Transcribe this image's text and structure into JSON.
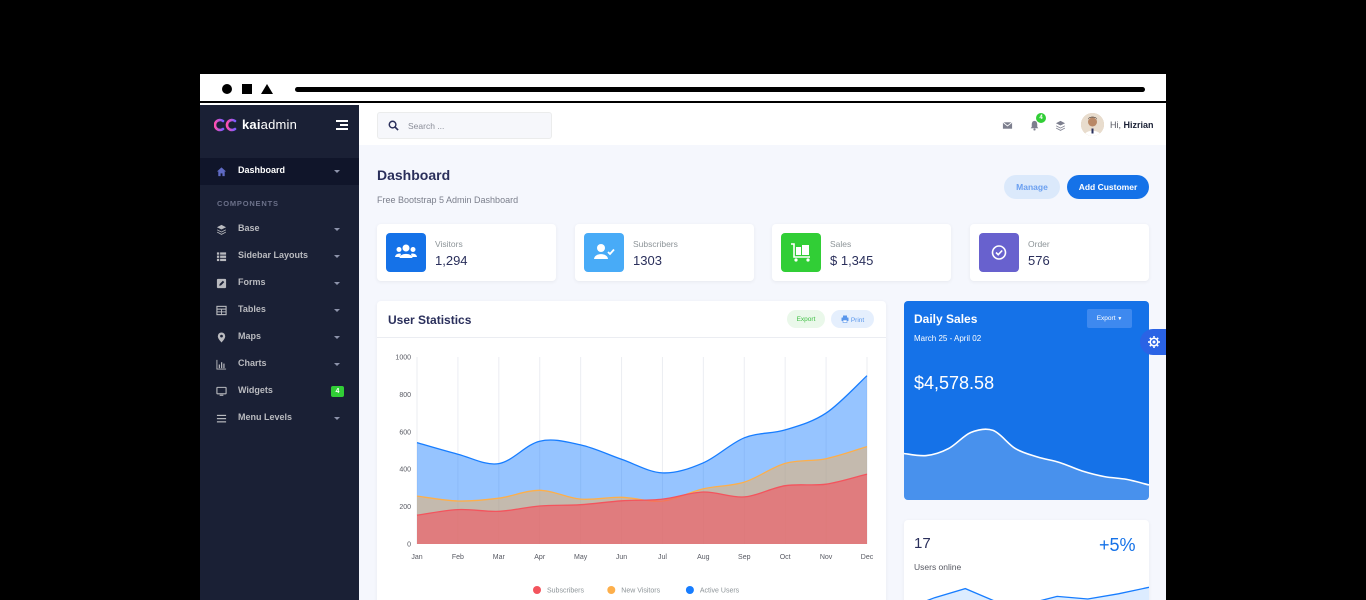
{
  "app": {
    "logo_text_bold": "kai",
    "logo_text_light": "admin"
  },
  "sidebar": {
    "section_label": "COMPONENTS",
    "items": [
      {
        "label": "Dashboard",
        "icon": "home-icon",
        "active": true
      },
      {
        "label": "Base",
        "icon": "layers-icon"
      },
      {
        "label": "Sidebar Layouts",
        "icon": "th-list-icon"
      },
      {
        "label": "Forms",
        "icon": "pen-square-icon"
      },
      {
        "label": "Tables",
        "icon": "table-icon"
      },
      {
        "label": "Maps",
        "icon": "map-marker-icon"
      },
      {
        "label": "Charts",
        "icon": "bar-chart-icon"
      },
      {
        "label": "Widgets",
        "icon": "desktop-icon",
        "badge": "4"
      },
      {
        "label": "Menu Levels",
        "icon": "bars-icon"
      }
    ]
  },
  "topbar": {
    "search_placeholder": "Search ...",
    "notification_count": "4",
    "greeting": "Hi,",
    "user_name": "Hizrian"
  },
  "page": {
    "title": "Dashboard",
    "subtitle": "Free Bootstrap 5 Admin Dashboard",
    "manage_label": "Manage",
    "add_customer_label": "Add Customer"
  },
  "stats": [
    {
      "label": "Visitors",
      "value": "1,294",
      "icon": "users-icon",
      "color": "#1572e8"
    },
    {
      "label": "Subscribers",
      "value": "1303",
      "icon": "user-check-icon",
      "color": "#48abf7"
    },
    {
      "label": "Sales",
      "value": "$ 1,345",
      "icon": "luggage-cart-icon",
      "color": "#31ce36"
    },
    {
      "label": "Order",
      "value": "576",
      "icon": "check-circle-icon",
      "color": "#6861ce"
    }
  ],
  "user_statistics": {
    "title": "User Statistics",
    "export_label": "Export",
    "print_label": "Print"
  },
  "chart_data": {
    "type": "area",
    "categories": [
      "Jan",
      "Feb",
      "Mar",
      "Apr",
      "May",
      "Jun",
      "Jul",
      "Aug",
      "Sep",
      "Oct",
      "Nov",
      "Dec"
    ],
    "ylim": [
      0,
      1000
    ],
    "yticks": [
      0,
      200,
      400,
      600,
      800,
      1000
    ],
    "grid": "vertical",
    "legend_position": "bottom",
    "series": [
      {
        "name": "Subscribers",
        "color": "#f3545d",
        "values": [
          154,
          184,
          175,
          203,
          210,
          231,
          240,
          278,
          252,
          312,
          320,
          374
        ]
      },
      {
        "name": "New Visitors",
        "color": "#fdaf4b",
        "values": [
          256,
          230,
          245,
          287,
          240,
          250,
          230,
          295,
          331,
          431,
          456,
          521
        ]
      },
      {
        "name": "Active Users",
        "color": "#177dff",
        "values": [
          542,
          480,
          430,
          550,
          530,
          453,
          380,
          434,
          568,
          610,
          700,
          900
        ]
      }
    ]
  },
  "daily_sales": {
    "title": "Daily Sales",
    "date_range": "March 25 - April 02",
    "export_label": "Export",
    "value": "$4,578.58",
    "trend": [
      0.55,
      0.52,
      0.62,
      0.85,
      0.88,
      0.62,
      0.5,
      0.42,
      0.3,
      0.22,
      0.18,
      0.1
    ]
  },
  "users_online": {
    "count": "17",
    "change": "+5%",
    "label": "Users online",
    "trend": [
      0.1,
      0.55,
      0.9,
      0.4,
      0.3,
      0.6,
      0.5,
      0.7,
      0.95
    ]
  }
}
